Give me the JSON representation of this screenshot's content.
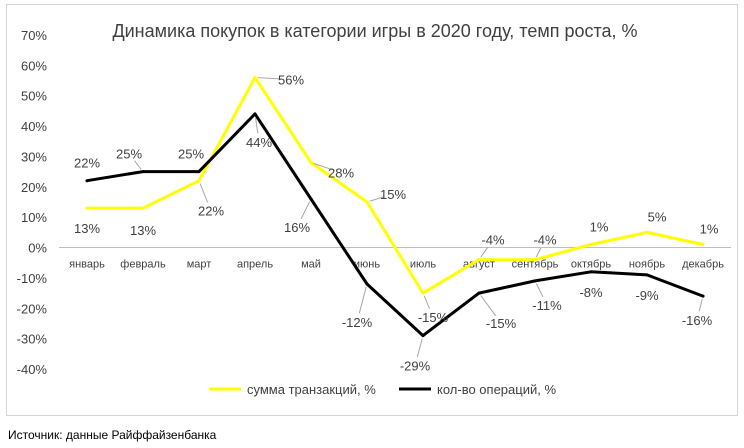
{
  "chart_data": {
    "type": "line",
    "title": "Динамика покупок в категории игры в 2020 году, темп роста, %",
    "xlabel": "",
    "ylabel": "",
    "categories": [
      "январь",
      "февраль",
      "март",
      "апрель",
      "май",
      "июнь",
      "июль",
      "август",
      "сентябрь",
      "октябрь",
      "ноябрь",
      "декабрь"
    ],
    "ylim": [
      -40,
      70
    ],
    "y_ticks": [
      -40,
      -30,
      -20,
      -10,
      0,
      10,
      20,
      30,
      40,
      50,
      60,
      70
    ],
    "y_tick_labels": [
      "-40%",
      "-30%",
      "-20%",
      "-10%",
      "0%",
      "10%",
      "20%",
      "30%",
      "40%",
      "50%",
      "60%",
      "70%"
    ],
    "grid": false,
    "legend_position": "bottom",
    "series": [
      {
        "name": "сумма транзакций, %",
        "color": "#FFFF00",
        "values": [
          13,
          13,
          22,
          56,
          28,
          15,
          -15,
          -4,
          -4,
          1,
          5,
          1
        ],
        "labels": [
          "13%",
          "13%",
          "22%",
          "56%",
          "28%",
          "15%",
          "-15%",
          "-4%",
          "-4%",
          "1%",
          "5%",
          "1%"
        ]
      },
      {
        "name": "кол-во операций, %",
        "color": "#000000",
        "values": [
          22,
          25,
          25,
          44,
          16,
          -12,
          -29,
          -15,
          -11,
          -8,
          -9,
          -16
        ],
        "labels": [
          "22%",
          "25%",
          "25%",
          "44%",
          "16%",
          "-12%",
          "-29%",
          "-15%",
          "-11%",
          "-8%",
          "-9%",
          "-16%"
        ]
      }
    ]
  },
  "source_note": "Источник: данные Райффайзенбанка"
}
